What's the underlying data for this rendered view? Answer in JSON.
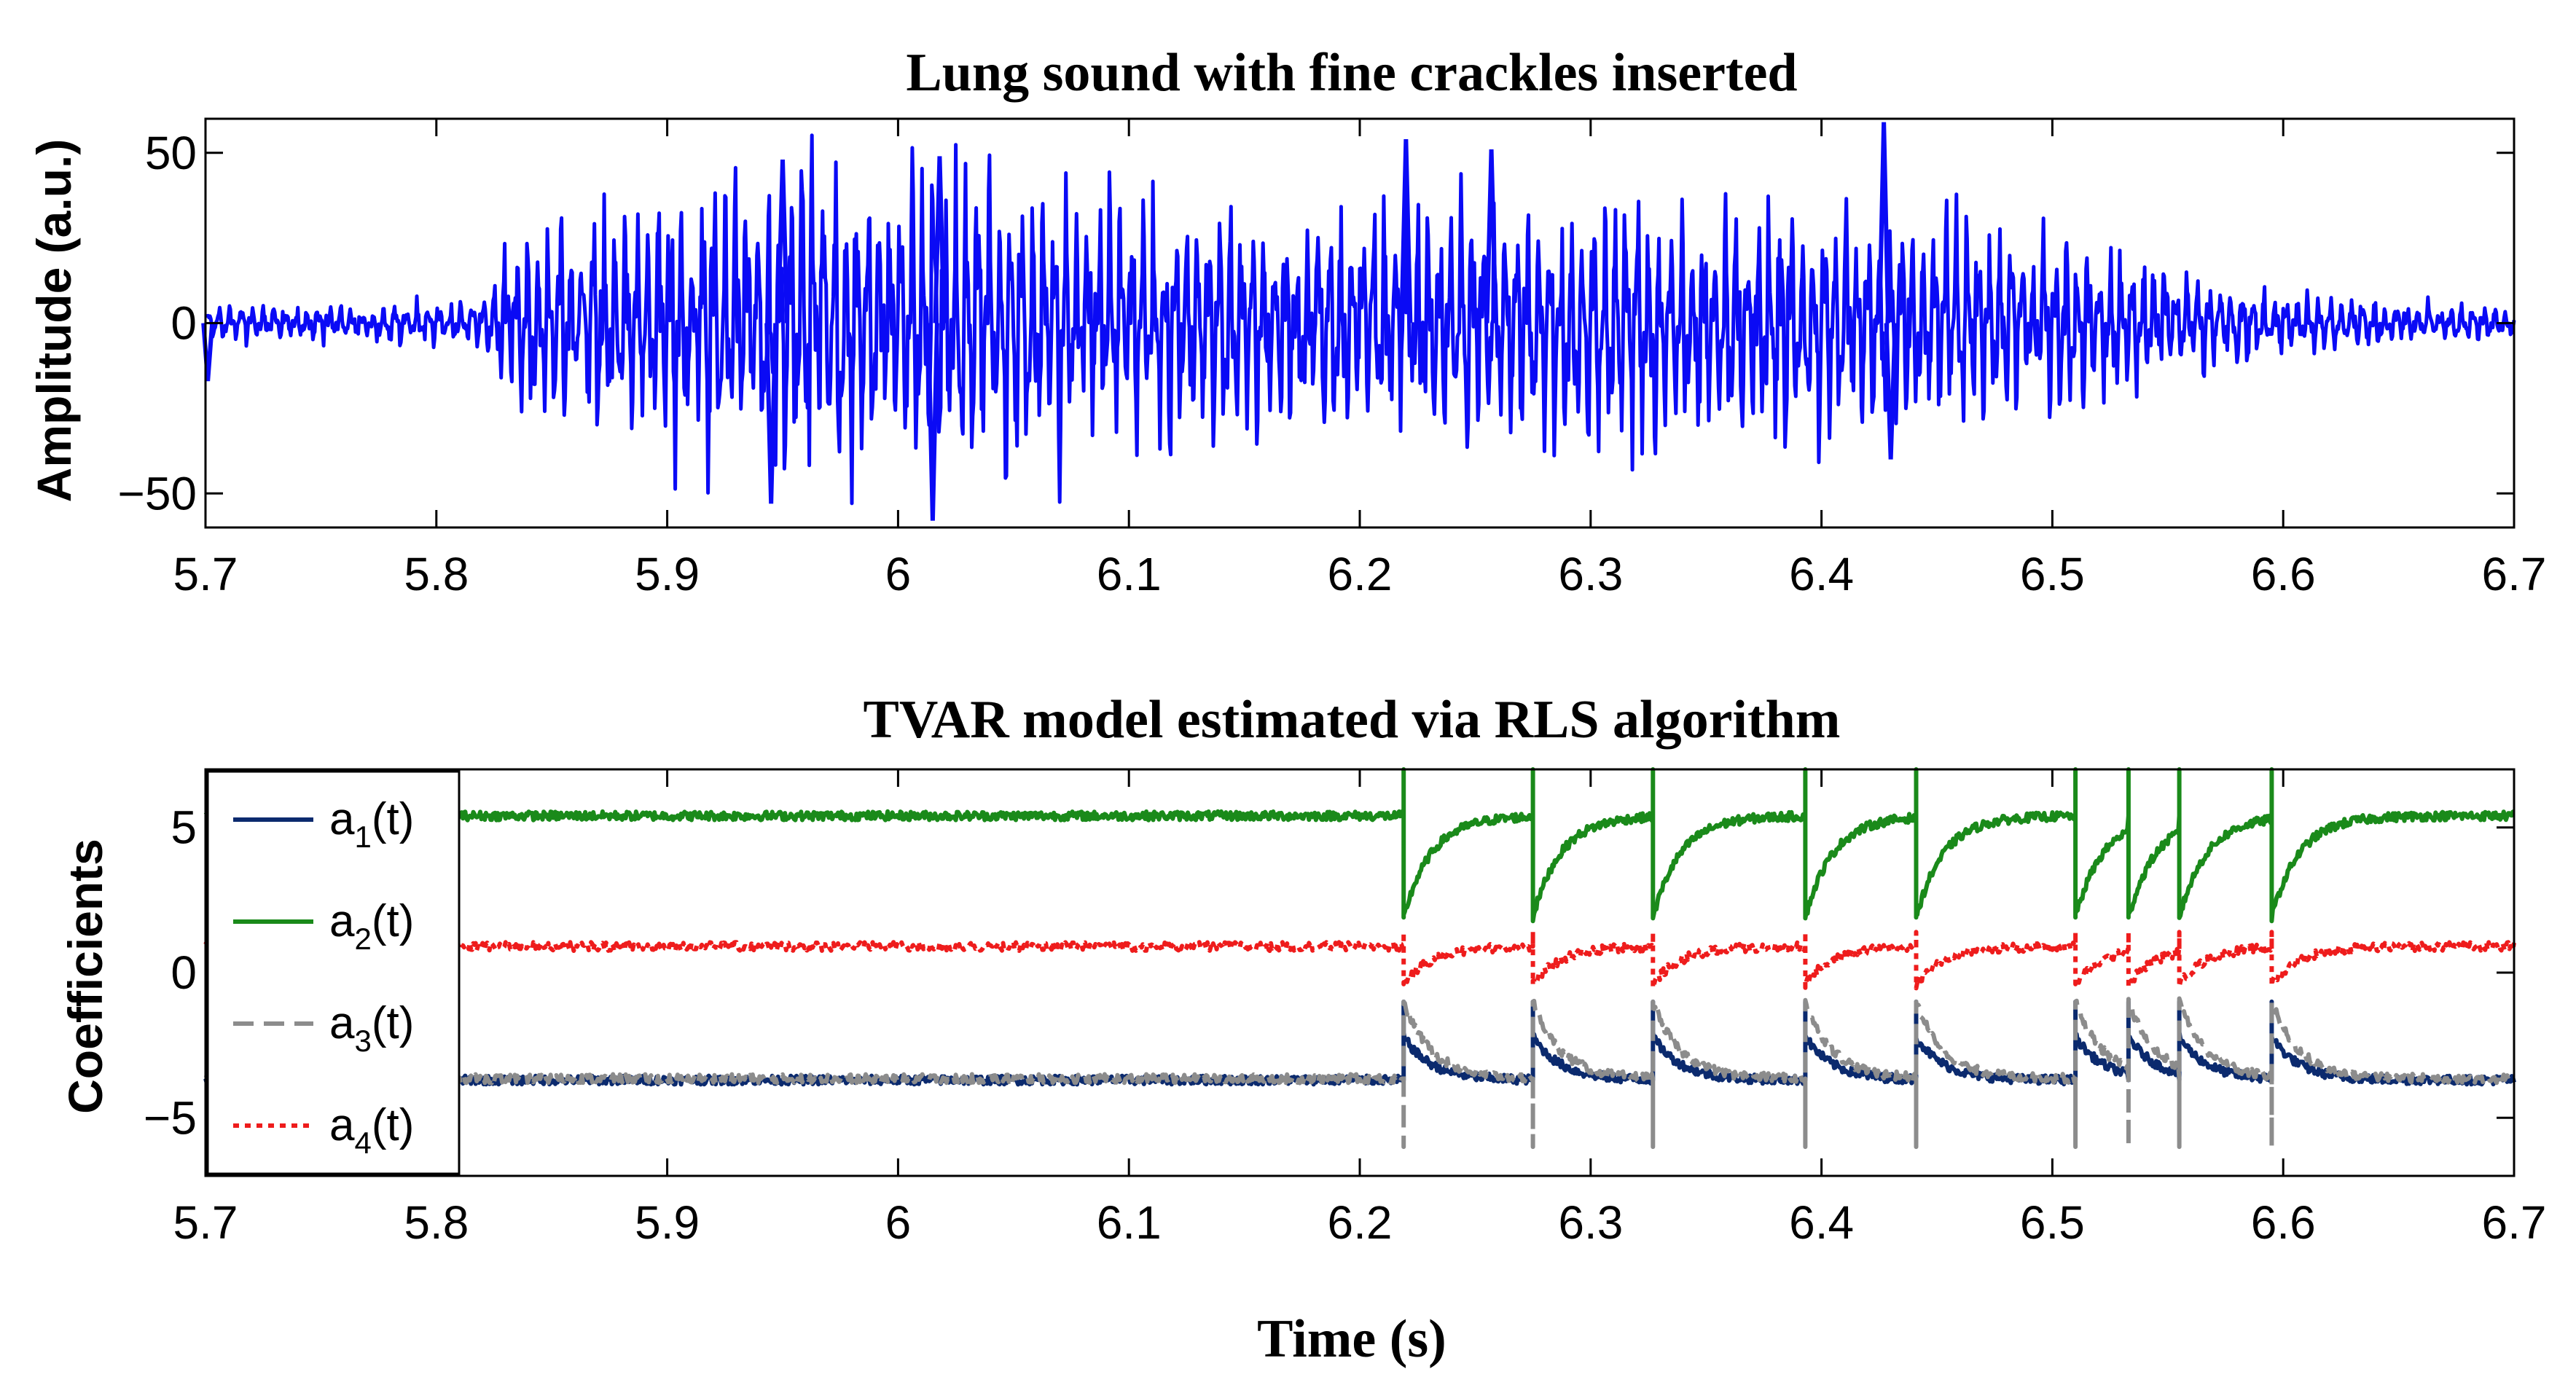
{
  "xlabel": "Time (s)",
  "chart_data": [
    {
      "type": "line",
      "title": "Lung sound with fine crackles inserted",
      "xlabel": "",
      "ylabel": "Amplitude (a.u.)",
      "xlim": [
        5.7,
        6.7
      ],
      "ylim": [
        -60,
        60
      ],
      "xticks": [
        "5.7",
        "5.8",
        "5.9",
        "6",
        "6.1",
        "6.2",
        "6.3",
        "6.4",
        "6.5",
        "6.6",
        "6.7"
      ],
      "yticks": [
        "50",
        "0",
        "−50"
      ],
      "ytick_values": [
        50,
        0,
        -50
      ],
      "series": [
        {
          "name": "lung sound",
          "color": "#0a0af5",
          "envelope_t": [
            5.7,
            5.82,
            5.83,
            5.9,
            5.95,
            6.0,
            6.05,
            6.1,
            6.15,
            6.2,
            6.25,
            6.3,
            6.35,
            6.4,
            6.45,
            6.5,
            6.55,
            6.6,
            6.7
          ],
          "envelope_amp": [
            5,
            6,
            22,
            38,
            45,
            46,
            40,
            34,
            30,
            32,
            38,
            36,
            34,
            33,
            30,
            24,
            16,
            8,
            5
          ],
          "spikes": [
            {
              "t": 5.701,
              "y": -17
            },
            {
              "t": 5.945,
              "y": -53
            },
            {
              "t": 5.95,
              "y": 48
            },
            {
              "t": 6.015,
              "y": -58
            },
            {
              "t": 6.018,
              "y": 49
            },
            {
              "t": 6.22,
              "y": 54
            },
            {
              "t": 6.257,
              "y": 51
            },
            {
              "t": 6.427,
              "y": 59
            },
            {
              "t": 6.43,
              "y": -40
            }
          ]
        }
      ]
    },
    {
      "type": "line",
      "title": "TVAR model estimated via RLS algorithm",
      "xlabel": "Time (s)",
      "ylabel": "Coefficients",
      "xlim": [
        5.7,
        6.7
      ],
      "ylim": [
        -7,
        7
      ],
      "xticks": [
        "5.7",
        "5.8",
        "5.9",
        "6",
        "6.1",
        "6.2",
        "6.3",
        "6.4",
        "6.5",
        "6.6",
        "6.7"
      ],
      "yticks": [
        "5",
        "0",
        "−5"
      ],
      "ytick_values": [
        5,
        0,
        -5
      ],
      "crackle_times": [
        6.219,
        6.275,
        6.327,
        6.393,
        6.441,
        6.51,
        6.533,
        6.555,
        6.595
      ],
      "series": [
        {
          "name": "a",
          "sub": "1",
          "label": "a1(t)",
          "color": "#0b2a6e",
          "dash": "solid",
          "baseline": -3.7,
          "jump": -2.2,
          "spike": -1.0
        },
        {
          "name": "a",
          "sub": "2",
          "label": "a2(t)",
          "color": "#1a8a1a",
          "dash": "solid",
          "baseline": 5.4,
          "jump": 1.9,
          "spike": 7.0
        },
        {
          "name": "a",
          "sub": "3",
          "label": "a3(t)",
          "color": "#8c8c8c",
          "dash": "dashed",
          "baseline": -3.65,
          "jump": -1.0,
          "spike": -6.0
        },
        {
          "name": "a",
          "sub": "4",
          "label": "a4(t)",
          "color": "#ee1c1c",
          "dash": "dotted",
          "baseline": 0.9,
          "jump": -0.4,
          "spike": 1.4
        }
      ],
      "legend_position": "left"
    }
  ]
}
